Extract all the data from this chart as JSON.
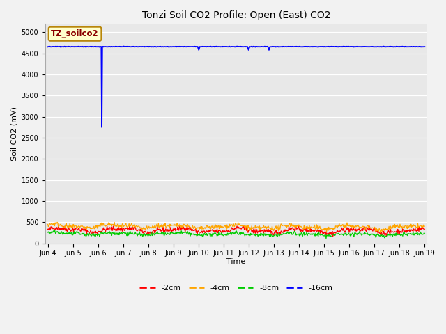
{
  "title": "Tonzi Soil CO2 Profile: Open (East) CO2",
  "ylabel": "Soil CO2 (mV)",
  "xlabel": "Time",
  "ylim": [
    0,
    5200
  ],
  "yticks": [
    0,
    500,
    1000,
    1500,
    2000,
    2500,
    3000,
    3500,
    4000,
    4500,
    5000
  ],
  "fig_facecolor": "#f2f2f2",
  "axes_facecolor": "#e8e8e8",
  "label_box_text": "TZ_soilco2",
  "label_box_facecolor": "#ffffcc",
  "label_box_edgecolor": "#b8860b",
  "label_box_textcolor": "#8b0000",
  "legend_entries": [
    "-2cm",
    "-4cm",
    "-8cm",
    "-16cm"
  ],
  "line_colors": [
    "#ff0000",
    "#ffa500",
    "#00cc00",
    "#0000ff"
  ],
  "n_points": 720,
  "x_start": 4.0,
  "x_end": 19.0,
  "blue_flat": 4660,
  "blue_dip1_x": 6.15,
  "blue_dip1_val": 2750,
  "blue_dip2_x": 10.0,
  "blue_dip2_val": 4580,
  "blue_dip3_x": 12.0,
  "blue_dip3_val": 4580,
  "blue_dip4_x": 12.8,
  "blue_dip4_val": 4580,
  "xtick_labels": [
    "Jun 4",
    "Jun 5",
    "Jun 6",
    "Jun 7",
    "Jun 8",
    "Jun 9",
    "Jun 10",
    "Jun 11",
    "Jun 12",
    "Jun 13",
    "Jun 14",
    "Jun 15",
    "Jun 16",
    "Jun 17",
    "Jun 18",
    "Jun 19"
  ],
  "xtick_positions": [
    4,
    5,
    6,
    7,
    8,
    9,
    10,
    11,
    12,
    13,
    14,
    15,
    16,
    17,
    18,
    19
  ],
  "title_fontsize": 10,
  "tick_fontsize": 7,
  "label_fontsize": 8,
  "legend_fontsize": 8
}
